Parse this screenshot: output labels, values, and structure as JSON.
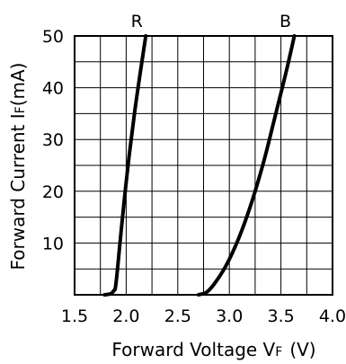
{
  "chart_data": {
    "type": "line",
    "xlabel_text": "Forward Voltage V",
    "xlabel_sub": "F",
    "xlabel_unit": "(V)",
    "ylabel_text": "Forward Current I",
    "ylabel_sub": "F",
    "ylabel_unit": "(mA)",
    "xlim": [
      1.5,
      4.0
    ],
    "ylim": [
      0,
      50
    ],
    "x_ticks": [
      "1.5",
      "2.0",
      "2.5",
      "3.0",
      "3.5",
      "4.0"
    ],
    "y_ticks": [
      "10",
      "20",
      "30",
      "40",
      "50"
    ],
    "grid": true,
    "series": [
      {
        "name": "R",
        "x": [
          1.79,
          1.85,
          1.88,
          1.9,
          1.94,
          1.98,
          2.03,
          2.08,
          2.13,
          2.19
        ],
        "y": [
          0,
          0.2,
          0.8,
          2,
          10,
          18,
          27,
          35,
          42,
          50
        ]
      },
      {
        "name": "B",
        "x": [
          2.7,
          2.78,
          2.85,
          2.95,
          3.05,
          3.15,
          3.25,
          3.35,
          3.45,
          3.55,
          3.63
        ],
        "y": [
          0,
          0.5,
          2,
          5,
          9,
          14,
          20,
          27,
          35,
          43,
          50
        ]
      }
    ]
  }
}
